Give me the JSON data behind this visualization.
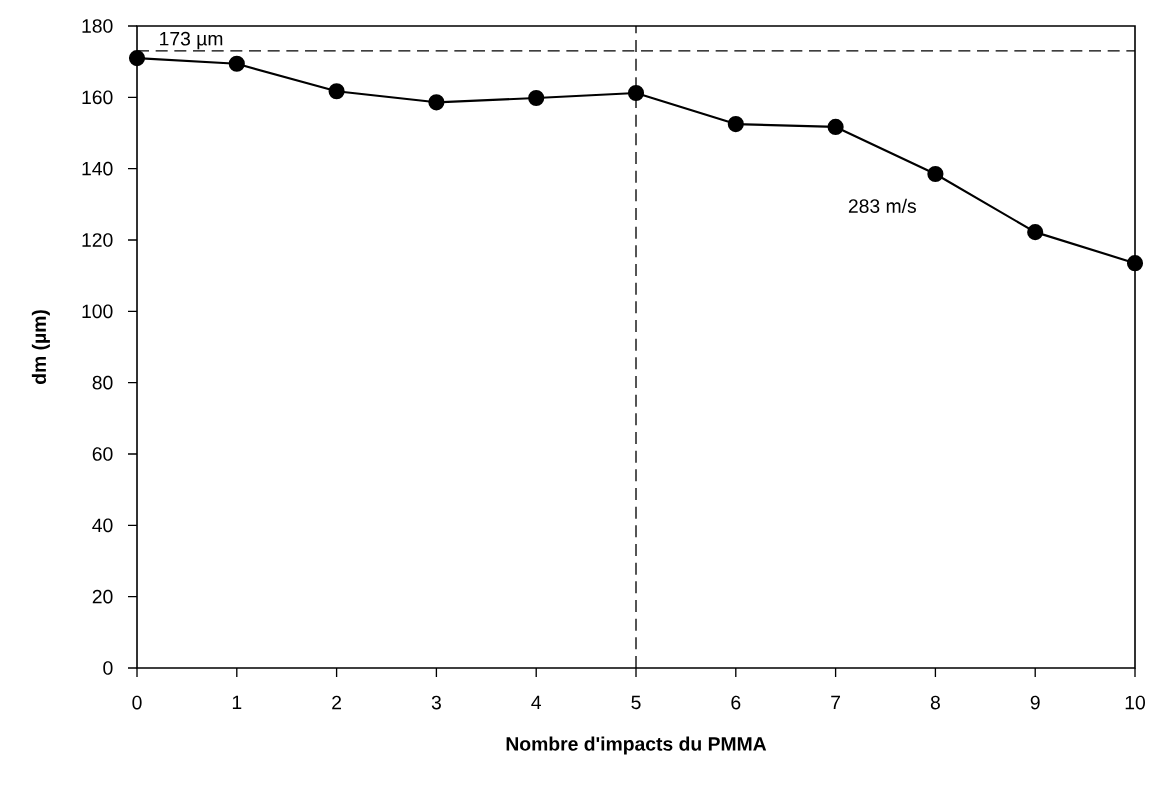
{
  "chart_data": {
    "type": "line",
    "xlabel": "Nombre d'impacts du PMMA",
    "ylabel": "dm    (µm)",
    "x": [
      0,
      1,
      2,
      3,
      4,
      5,
      6,
      7,
      8,
      9,
      10
    ],
    "series": [
      {
        "name": "283 m/s",
        "color": "#000000",
        "values": [
          171,
          169.4,
          161.7,
          158.6,
          159.8,
          161.2,
          152.5,
          151.7,
          138.5,
          122.2,
          113.5
        ]
      }
    ],
    "xlim": [
      0,
      10
    ],
    "xticks": [
      0,
      1,
      2,
      3,
      4,
      5,
      6,
      7,
      8,
      9,
      10
    ],
    "ylim": [
      0,
      180
    ],
    "yticks": [
      0,
      20,
      40,
      60,
      80,
      100,
      120,
      140,
      160,
      180
    ],
    "ref_lines": [
      {
        "axis": "y",
        "value": 173,
        "label": "173 µm",
        "line_style": "dashed"
      },
      {
        "axis": "x",
        "value": 5,
        "line_style": "dashed"
      }
    ],
    "grid": false,
    "marker": "circle",
    "line_style": "solid"
  }
}
